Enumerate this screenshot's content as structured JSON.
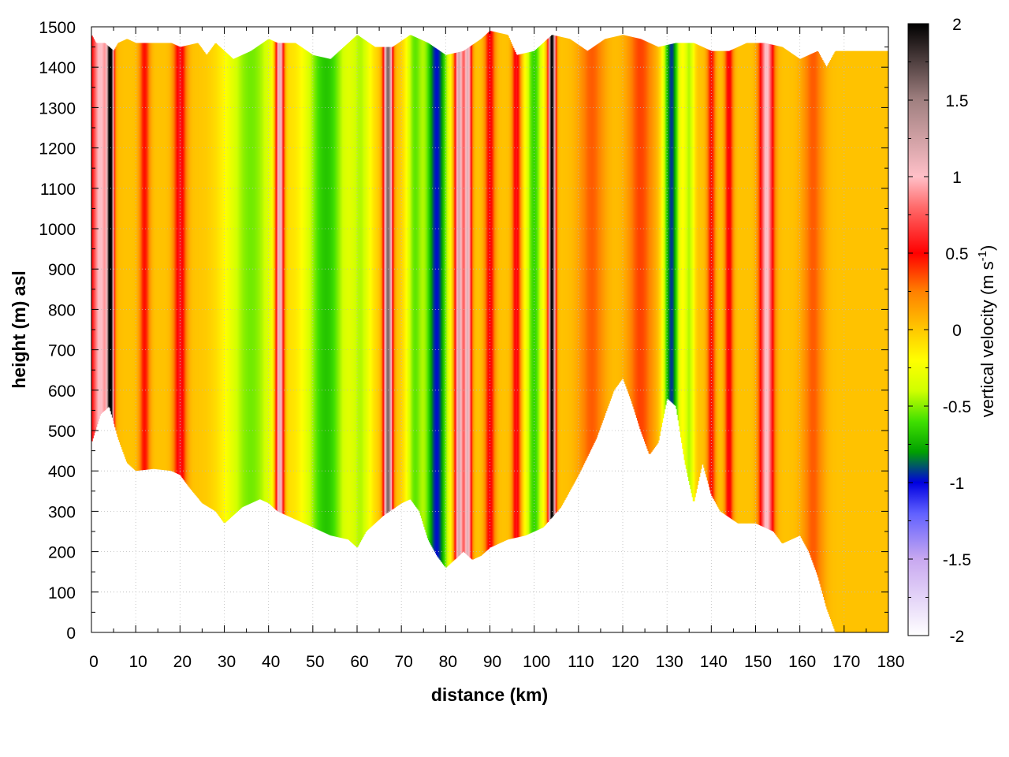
{
  "chart_data": {
    "type": "heatmap",
    "title": "",
    "xlabel": "distance (km)",
    "ylabel": "height (m) asl",
    "xlim": [
      0,
      180
    ],
    "ylim": [
      0,
      1500
    ],
    "x_ticks": [
      "0",
      "10",
      "20",
      "30",
      "40",
      "50",
      "60",
      "70",
      "80",
      "90",
      "100",
      "110",
      "120",
      "130",
      "140",
      "150",
      "160",
      "170",
      "180"
    ],
    "y_ticks": [
      "0",
      "100",
      "200",
      "300",
      "400",
      "500",
      "600",
      "700",
      "800",
      "900",
      "1000",
      "1100",
      "1200",
      "1300",
      "1400",
      "1500"
    ],
    "grid": true,
    "colorbar": {
      "label": "vertical velocity (m s",
      "label_exp": "-1",
      "label_end": ")",
      "range": [
        -2,
        2
      ],
      "ticks": [
        "2",
        "1.5",
        "1",
        "0.5",
        "0",
        "-0.5",
        "-1",
        "-1.5",
        "-2"
      ],
      "colors": [
        {
          "v": -2.0,
          "c": "#ffffff"
        },
        {
          "v": -1.5,
          "c": "#c8a8f0"
        },
        {
          "v": -1.2,
          "c": "#6060ff"
        },
        {
          "v": -1.0,
          "c": "#0000e0"
        },
        {
          "v": -0.8,
          "c": "#00a000"
        },
        {
          "v": -0.6,
          "c": "#40e000"
        },
        {
          "v": -0.4,
          "c": "#d0ff00"
        },
        {
          "v": -0.2,
          "c": "#ffff00"
        },
        {
          "v": 0.0,
          "c": "#ffc800"
        },
        {
          "v": 0.25,
          "c": "#ff8000"
        },
        {
          "v": 0.5,
          "c": "#ff0000"
        },
        {
          "v": 0.8,
          "c": "#ff6a6a"
        },
        {
          "v": 1.0,
          "c": "#ffc0c8"
        },
        {
          "v": 1.5,
          "c": "#a08080"
        },
        {
          "v": 2.0,
          "c": "#000000"
        }
      ]
    },
    "terrain_bottom": [
      [
        0,
        470
      ],
      [
        2,
        540
      ],
      [
        4,
        560
      ],
      [
        6,
        480
      ],
      [
        8,
        420
      ],
      [
        10,
        400
      ],
      [
        14,
        405
      ],
      [
        18,
        400
      ],
      [
        20,
        390
      ],
      [
        22,
        360
      ],
      [
        25,
        320
      ],
      [
        28,
        300
      ],
      [
        30,
        270
      ],
      [
        34,
        310
      ],
      [
        38,
        330
      ],
      [
        40,
        320
      ],
      [
        42,
        300
      ],
      [
        46,
        280
      ],
      [
        50,
        260
      ],
      [
        54,
        240
      ],
      [
        58,
        230
      ],
      [
        60,
        210
      ],
      [
        62,
        250
      ],
      [
        66,
        290
      ],
      [
        70,
        320
      ],
      [
        72,
        330
      ],
      [
        74,
        300
      ],
      [
        76,
        230
      ],
      [
        78,
        190
      ],
      [
        80,
        160
      ],
      [
        82,
        180
      ],
      [
        84,
        200
      ],
      [
        86,
        180
      ],
      [
        88,
        190
      ],
      [
        90,
        210
      ],
      [
        94,
        230
      ],
      [
        98,
        240
      ],
      [
        102,
        260
      ],
      [
        106,
        310
      ],
      [
        110,
        390
      ],
      [
        114,
        480
      ],
      [
        118,
        600
      ],
      [
        120,
        630
      ],
      [
        122,
        570
      ],
      [
        124,
        500
      ],
      [
        126,
        440
      ],
      [
        128,
        470
      ],
      [
        130,
        580
      ],
      [
        132,
        560
      ],
      [
        134,
        420
      ],
      [
        136,
        320
      ],
      [
        138,
        420
      ],
      [
        140,
        340
      ],
      [
        142,
        300
      ],
      [
        146,
        270
      ],
      [
        150,
        270
      ],
      [
        154,
        250
      ],
      [
        156,
        220
      ],
      [
        158,
        230
      ],
      [
        160,
        240
      ],
      [
        162,
        200
      ],
      [
        164,
        140
      ],
      [
        166,
        60
      ],
      [
        168,
        0
      ],
      [
        180,
        0
      ]
    ],
    "terrain_top": [
      [
        0,
        1480
      ],
      [
        1,
        1460
      ],
      [
        3,
        1460
      ],
      [
        5,
        1440
      ],
      [
        6,
        1460
      ],
      [
        8,
        1470
      ],
      [
        10,
        1460
      ],
      [
        14,
        1460
      ],
      [
        18,
        1460
      ],
      [
        20,
        1450
      ],
      [
        24,
        1460
      ],
      [
        26,
        1430
      ],
      [
        28,
        1460
      ],
      [
        30,
        1440
      ],
      [
        32,
        1420
      ],
      [
        36,
        1440
      ],
      [
        40,
        1470
      ],
      [
        42,
        1460
      ],
      [
        46,
        1460
      ],
      [
        50,
        1430
      ],
      [
        54,
        1420
      ],
      [
        58,
        1460
      ],
      [
        60,
        1480
      ],
      [
        64,
        1450
      ],
      [
        68,
        1450
      ],
      [
        72,
        1480
      ],
      [
        76,
        1460
      ],
      [
        80,
        1430
      ],
      [
        84,
        1440
      ],
      [
        88,
        1470
      ],
      [
        90,
        1490
      ],
      [
        94,
        1480
      ],
      [
        96,
        1430
      ],
      [
        100,
        1440
      ],
      [
        104,
        1480
      ],
      [
        108,
        1470
      ],
      [
        112,
        1440
      ],
      [
        116,
        1470
      ],
      [
        120,
        1480
      ],
      [
        124,
        1470
      ],
      [
        128,
        1450
      ],
      [
        132,
        1460
      ],
      [
        136,
        1460
      ],
      [
        140,
        1440
      ],
      [
        144,
        1440
      ],
      [
        148,
        1460
      ],
      [
        152,
        1460
      ],
      [
        156,
        1450
      ],
      [
        160,
        1420
      ],
      [
        164,
        1440
      ],
      [
        166,
        1400
      ],
      [
        168,
        1440
      ],
      [
        180,
        1440
      ]
    ],
    "features": [
      {
        "x": 2,
        "w": 2.2,
        "v": 1.0
      },
      {
        "x": 4.3,
        "w": 0.7,
        "v": 2.0
      },
      {
        "x": 12,
        "w": 1.2,
        "v": 0.45
      },
      {
        "x": 20,
        "w": 1.5,
        "v": 0.55
      },
      {
        "x": 36,
        "w": 6.0,
        "v": -0.55
      },
      {
        "x": 42.5,
        "w": 1.0,
        "v": 1.3
      },
      {
        "x": 53,
        "w": 5.0,
        "v": -0.7
      },
      {
        "x": 61,
        "w": 2.5,
        "v": -0.4
      },
      {
        "x": 67,
        "w": 1.0,
        "v": 1.6
      },
      {
        "x": 73,
        "w": 2.0,
        "v": -0.55
      },
      {
        "x": 78,
        "w": 2.6,
        "v": -1.0
      },
      {
        "x": 83,
        "w": 1.0,
        "v": 1.2
      },
      {
        "x": 85,
        "w": 0.9,
        "v": 1.1
      },
      {
        "x": 90,
        "w": 1.2,
        "v": 0.5
      },
      {
        "x": 96,
        "w": 1.0,
        "v": 0.55
      },
      {
        "x": 100,
        "w": 2.0,
        "v": -0.65
      },
      {
        "x": 104,
        "w": 0.8,
        "v": 2.0
      },
      {
        "x": 113,
        "w": 3.0,
        "v": 0.3
      },
      {
        "x": 124,
        "w": 3.0,
        "v": 0.35
      },
      {
        "x": 131,
        "w": 1.8,
        "v": -0.95
      },
      {
        "x": 135,
        "w": 1.2,
        "v": -0.45
      },
      {
        "x": 140,
        "w": 1.0,
        "v": 0.45
      },
      {
        "x": 144,
        "w": 1.0,
        "v": 0.5
      },
      {
        "x": 152.5,
        "w": 1.6,
        "v": 1.0
      },
      {
        "x": 163,
        "w": 2.5,
        "v": 0.3
      }
    ]
  }
}
